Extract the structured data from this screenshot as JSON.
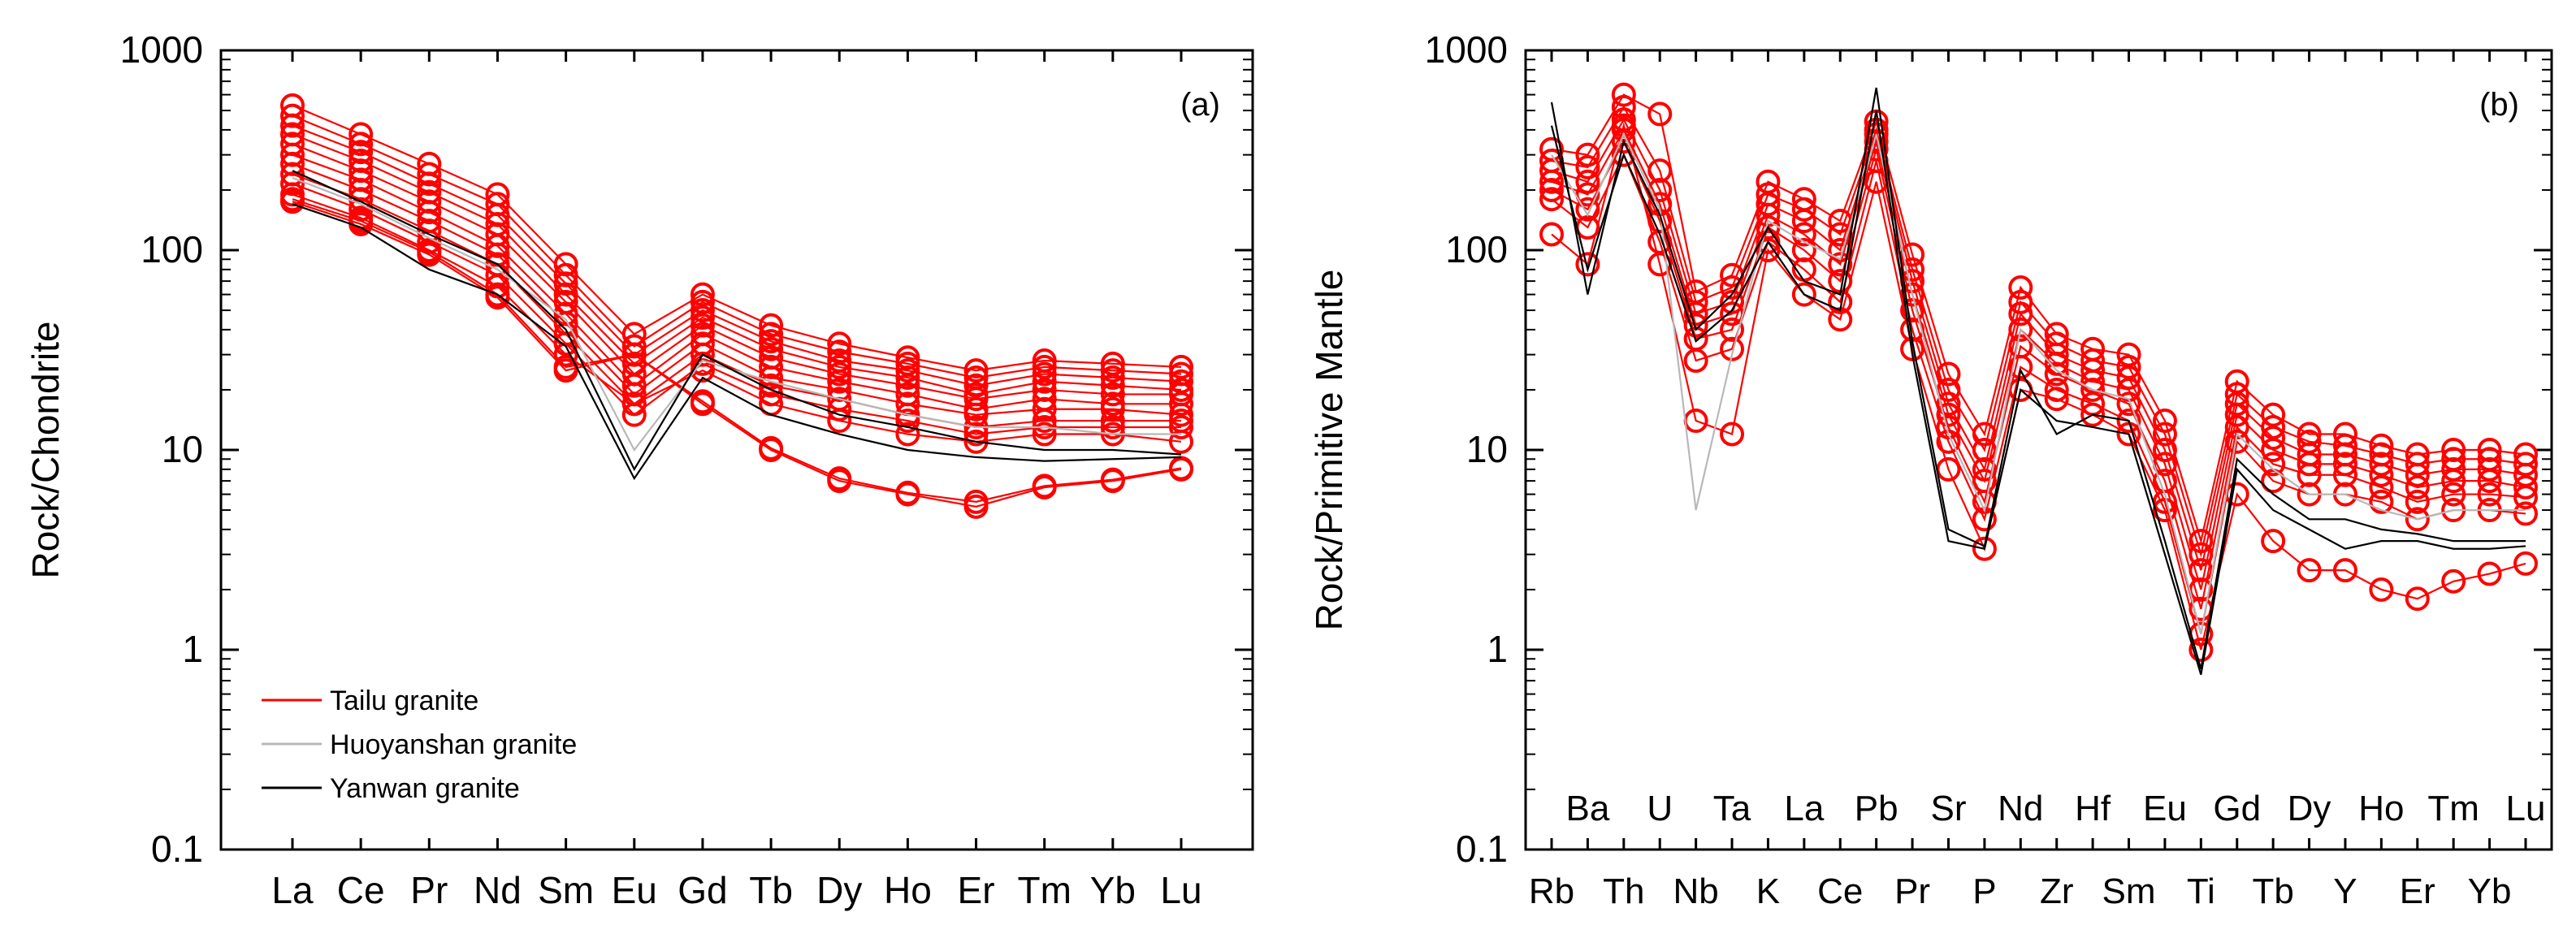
{
  "legend": {
    "entries": [
      {
        "label": "Tailu granite",
        "color": "#ff0000"
      },
      {
        "label": "Huoyanshan granite",
        "color": "#b8b8b8"
      },
      {
        "label": "Yanwan granite",
        "color": "#000000"
      }
    ]
  },
  "chart_data": [
    {
      "type": "line",
      "panel_label": "(a)",
      "title": "",
      "xlabel": "",
      "ylabel": "Rock/Chondrite",
      "yscale": "log",
      "ylim": [
        0.1,
        1000
      ],
      "y_ticks": [
        "0.1",
        "1",
        "10",
        "100",
        "1000"
      ],
      "categories": [
        "La",
        "Ce",
        "Pr",
        "Nd",
        "Sm",
        "Eu",
        "Gd",
        "Tb",
        "Dy",
        "Ho",
        "Er",
        "Tm",
        "Yb",
        "Lu"
      ],
      "category_labels": [
        "La",
        "Ce",
        "Pr",
        "Nd",
        "Sm",
        "Eu",
        "Gd",
        "Tb",
        "Dy",
        "Ho",
        "Er",
        "Tm",
        "Yb",
        "Lu"
      ],
      "series": [
        {
          "name": "Tailu granite",
          "group": "Tailu granite",
          "values": [
            530,
            380,
            270,
            190,
            85,
            38,
            60,
            42,
            34,
            29,
            25,
            28,
            27,
            26
          ]
        },
        {
          "name": "Tailu granite",
          "group": "Tailu granite",
          "values": [
            470,
            340,
            240,
            170,
            75,
            33,
            55,
            38,
            31,
            27,
            23,
            26,
            25,
            24
          ]
        },
        {
          "name": "Tailu granite",
          "group": "Tailu granite",
          "values": [
            420,
            310,
            215,
            150,
            68,
            30,
            50,
            35,
            28,
            25,
            21,
            24,
            23,
            22
          ]
        },
        {
          "name": "Tailu granite",
          "group": "Tailu granite",
          "values": [
            380,
            280,
            195,
            135,
            60,
            27,
            46,
            32,
            26,
            23,
            19,
            22,
            21,
            20
          ]
        },
        {
          "name": "Tailu granite",
          "group": "Tailu granite",
          "values": [
            340,
            250,
            175,
            120,
            55,
            24,
            42,
            29,
            24,
            21,
            18,
            20,
            19,
            19
          ]
        },
        {
          "name": "Tailu granite",
          "group": "Tailu granite",
          "values": [
            300,
            225,
            155,
            105,
            48,
            21,
            38,
            26,
            22,
            19,
            16,
            18,
            17,
            17
          ]
        },
        {
          "name": "Tailu granite",
          "group": "Tailu granite",
          "values": [
            270,
            200,
            140,
            95,
            43,
            19,
            34,
            23,
            20,
            17,
            15,
            16,
            16,
            15
          ]
        },
        {
          "name": "Tailu granite",
          "group": "Tailu granite",
          "values": [
            240,
            180,
            125,
            85,
            38,
            17,
            30,
            21,
            18,
            15,
            13,
            14,
            14,
            14
          ]
        },
        {
          "name": "Tailu granite",
          "group": "Tailu granite",
          "values": [
            215,
            160,
            110,
            75,
            34,
            15,
            27,
            19,
            16,
            14,
            12,
            13,
            13,
            13
          ]
        },
        {
          "name": "Tailu granite",
          "group": "Tailu granite",
          "values": [
            190,
            145,
            100,
            66,
            30,
            17,
            25,
            17,
            14,
            12,
            11,
            12,
            12,
            11
          ]
        },
        {
          "name": "Tailu granite",
          "group": "Tailu granite",
          "values": [
            175,
            135,
            95,
            58,
            25,
            30,
            17,
            10,
            7,
            6,
            5.2,
            6.5,
            7,
            8
          ]
        },
        {
          "name": "Tailu granite",
          "group": "Tailu granite",
          "values": [
            180,
            140,
            98,
            60,
            26,
            30,
            17.5,
            10.2,
            7.2,
            6.1,
            5.5,
            6.6,
            7.1,
            8.1
          ]
        },
        {
          "name": "Huoyanshan granite",
          "group": "Huoyanshan granite",
          "values": [
            230,
            170,
            115,
            80,
            45,
            10,
            28,
            22,
            18,
            15,
            13,
            13,
            12,
            12
          ]
        },
        {
          "name": "Yanwan granite",
          "group": "Yanwan granite",
          "values": [
            250,
            175,
            120,
            85,
            40,
            8,
            30,
            20,
            15,
            13,
            11,
            10,
            10,
            9.5
          ]
        },
        {
          "name": "Yanwan granite",
          "group": "Yanwan granite",
          "values": [
            170,
            130,
            80,
            60,
            33,
            7.2,
            23,
            15,
            12,
            10,
            9.2,
            8.8,
            9,
            9.2
          ]
        }
      ]
    },
    {
      "type": "line",
      "panel_label": "(b)",
      "title": "",
      "xlabel": "",
      "ylabel": "Rock/Primitive Mantle",
      "yscale": "log",
      "ylim": [
        0.1,
        1000
      ],
      "y_ticks": [
        "0.1",
        "1",
        "10",
        "100",
        "1000"
      ],
      "categories": [
        "Rb",
        "Ba",
        "Th",
        "U",
        "Nb",
        "Ta",
        "K",
        "La",
        "Ce",
        "Pb",
        "Pr",
        "Sr",
        "P",
        "Nd",
        "Zr",
        "Hf",
        "Sm",
        "Eu",
        "Ti",
        "Gd",
        "Tb",
        "Dy",
        "Y",
        "Ho",
        "Er",
        "Tm",
        "Yb",
        "Lu"
      ],
      "bottom_labels": [
        "Rb",
        "Th",
        "Nb",
        "K",
        "Ce",
        "Pr",
        "P",
        "Zr",
        "Sm",
        "Ti",
        "Tb",
        "Y",
        "Er",
        "Yb"
      ],
      "inner_labels": [
        "Ba",
        "U",
        "Ta",
        "La",
        "Pb",
        "Sr",
        "Nd",
        "Hf",
        "Eu",
        "Gd",
        "Dy",
        "Ho",
        "Tm",
        "Lu"
      ],
      "series": [
        {
          "name": "Tailu granite",
          "group": "Tailu granite",
          "values": [
            320,
            300,
            600,
            480,
            62,
            75,
            220,
            180,
            140,
            440,
            95,
            24,
            12,
            65,
            38,
            32,
            30,
            14,
            3.5,
            22,
            15,
            12,
            12,
            10.5,
            9.5,
            10,
            10,
            9.5
          ]
        },
        {
          "name": "Tailu granite",
          "group": "Tailu granite",
          "values": [
            280,
            260,
            520,
            250,
            55,
            65,
            190,
            160,
            120,
            400,
            80,
            20,
            10,
            55,
            34,
            28,
            26,
            12,
            3,
            19,
            13,
            11,
            10.5,
            9.5,
            8.5,
            9,
            9,
            8.5
          ]
        },
        {
          "name": "Tailu granite",
          "group": "Tailu granite",
          "values": [
            250,
            220,
            450,
            200,
            48,
            55,
            170,
            140,
            100,
            380,
            70,
            17,
            8,
            48,
            30,
            25,
            23,
            10,
            2.5,
            17,
            11.5,
            9.5,
            9.5,
            8.5,
            7.5,
            8,
            8,
            7.5
          ]
        },
        {
          "name": "Tailu granite",
          "group": "Tailu granite",
          "values": [
            220,
            190,
            400,
            170,
            42,
            48,
            150,
            120,
            85,
            350,
            60,
            15,
            7,
            40,
            27,
            22,
            20,
            8.5,
            2,
            15,
            10,
            8.5,
            8.5,
            7.5,
            6.5,
            7,
            7,
            6.5
          ]
        },
        {
          "name": "Tailu granite",
          "group": "Tailu granite",
          "values": [
            200,
            160,
            350,
            140,
            36,
            40,
            130,
            100,
            70,
            320,
            50,
            13,
            5.5,
            33,
            24,
            20,
            17,
            7,
            1.6,
            13,
            8.5,
            7.5,
            7.5,
            6.5,
            5.5,
            6,
            6,
            5.8
          ]
        },
        {
          "name": "Tailu granite",
          "group": "Tailu granite",
          "values": [
            180,
            130,
            300,
            110,
            28,
            32,
            110,
            80,
            55,
            280,
            40,
            11,
            4.5,
            26,
            20,
            17,
            14,
            5.5,
            1.2,
            11,
            7,
            6,
            6,
            5.5,
            4.5,
            5,
            5,
            4.8
          ]
        },
        {
          "name": "Tailu granite",
          "group": "Tailu granite",
          "values": [
            120,
            85,
            420,
            85,
            14,
            12,
            100,
            60,
            45,
            220,
            32,
            8,
            3.2,
            20,
            18,
            15,
            12,
            5,
            1,
            6,
            3.5,
            2.5,
            2.5,
            2,
            1.8,
            2.2,
            2.4,
            2.7
          ]
        },
        {
          "name": "Huoyanshan granite",
          "group": "Huoyanshan granite",
          "values": [
            300,
            150,
            380,
            160,
            5,
            30,
            140,
            110,
            90,
            380,
            60,
            12,
            5,
            40,
            25,
            20,
            18,
            6,
            1.2,
            12,
            8,
            6,
            6,
            5,
            4.5,
            5,
            5,
            5
          ]
        },
        {
          "name": "Yanwan granite",
          "group": "Yanwan granite",
          "values": [
            550,
            60,
            350,
            150,
            40,
            60,
            130,
            70,
            60,
            650,
            35,
            4,
            3.3,
            25,
            12,
            15,
            14,
            3.5,
            0.8,
            9,
            6,
            4.5,
            4.5,
            4,
            3.8,
            3.5,
            3.5,
            3.5
          ]
        },
        {
          "name": "Yanwan granite",
          "group": "Yanwan granite",
          "values": [
            420,
            80,
            300,
            120,
            35,
            50,
            110,
            60,
            50,
            500,
            30,
            3.5,
            3.2,
            20,
            14,
            13,
            12,
            3,
            0.75,
            8,
            5,
            4,
            3.2,
            3.5,
            3.5,
            3.2,
            3.2,
            3.3
          ]
        }
      ]
    }
  ]
}
